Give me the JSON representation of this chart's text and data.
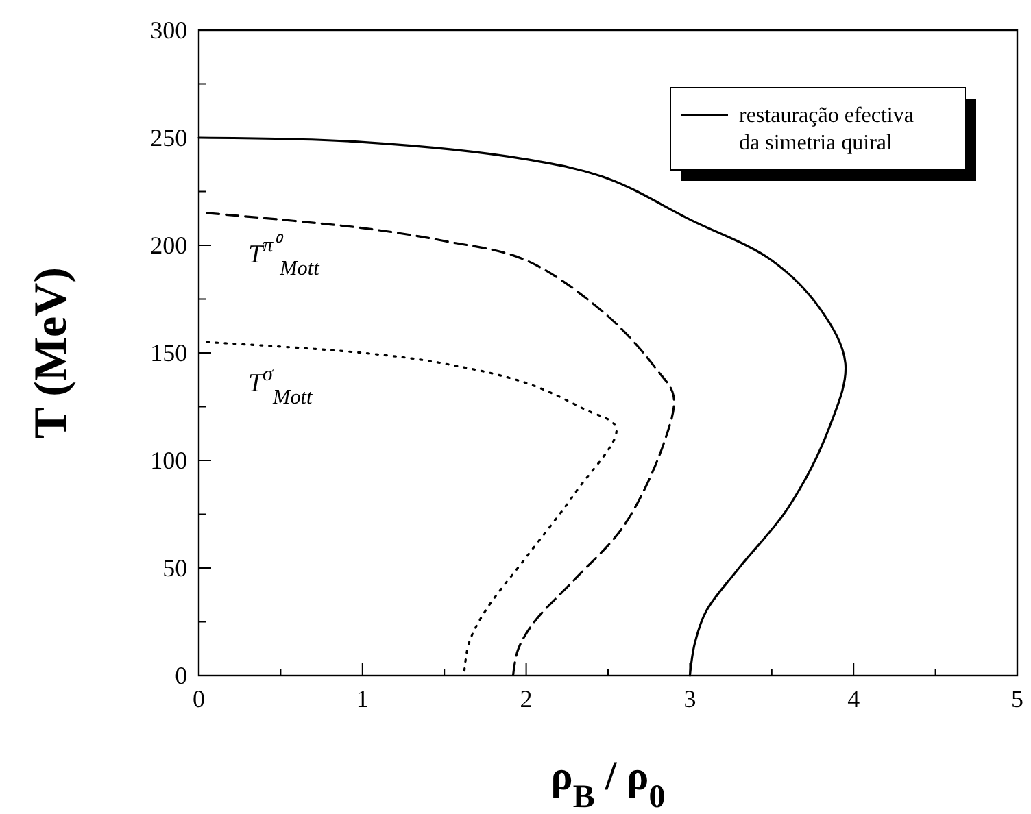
{
  "chart_data": {
    "type": "line",
    "xlabel": "ρ$_{B}$ / ρ$_{0}$",
    "ylabel": "T (MeV)",
    "xlim": [
      0,
      5
    ],
    "ylim": [
      0,
      300
    ],
    "xticks": [
      0,
      {
        "value": 0.5,
        "label": null
      },
      1,
      {
        "value": 1.5,
        "label": null
      },
      2,
      {
        "value": 2.5,
        "label": null
      },
      3,
      {
        "value": 3.5,
        "label": null
      },
      4,
      {
        "value": 4.5,
        "label": null
      },
      5
    ],
    "yticks": [
      0,
      {
        "value": 25,
        "label": null
      },
      50,
      {
        "value": 75,
        "label": null
      },
      100,
      {
        "value": 125,
        "label": null
      },
      150,
      {
        "value": 175,
        "label": null
      },
      200,
      {
        "value": 225,
        "label": null
      },
      250,
      {
        "value": 275,
        "label": null
      },
      300
    ],
    "legend": "top right",
    "grid": false,
    "series": [
      {
        "name": "restauração efectiva da simetria quiral",
        "color": "#000000",
        "line_style": "solid",
        "x": [
          0,
          1,
          2,
          2.5,
          3,
          3.5,
          3.8,
          3.95,
          3.85,
          3.6,
          3.3,
          3.1,
          3.03,
          3.0
        ],
        "values": [
          250,
          248,
          240,
          231,
          212,
          193,
          170,
          145,
          115,
          78,
          50,
          30,
          15,
          0
        ]
      },
      {
        "color": "#000000",
        "line_style": "dashed",
        "x": [
          0.05,
          1,
          1.5,
          2,
          2.5,
          2.8,
          2.9,
          2.85,
          2.6,
          2.3,
          2.05,
          1.95,
          1.92
        ],
        "values": [
          215,
          208,
          202,
          193,
          167,
          142,
          130,
          110,
          70,
          45,
          25,
          12,
          0
        ]
      },
      {
        "color": "#000000",
        "line_style": "dotted",
        "x": [
          0.05,
          1,
          1.5,
          2,
          2.35,
          2.55,
          2.3,
          2.0,
          1.75,
          1.65,
          1.62
        ],
        "values": [
          155,
          150,
          145,
          136,
          124,
          115,
          85,
          55,
          30,
          15,
          0
        ]
      }
    ],
    "annotations": [
      "T$^{π⁰}$$_{Mott}$",
      "T$^{σ}$$_{Mott}$"
    ]
  }
}
